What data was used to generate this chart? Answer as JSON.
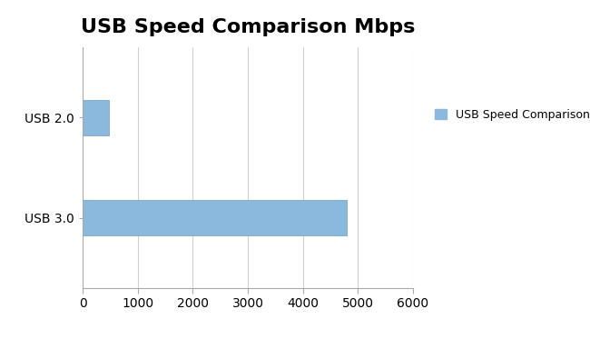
{
  "title": "USB Speed Comparison Mbps",
  "title_fontsize": 16,
  "title_fontweight": "bold",
  "categories": [
    "USB 3.0",
    "USB 2.0"
  ],
  "values": [
    4800,
    480
  ],
  "bar_color": "#8BB8DD",
  "bar_color_edge": "#6A9DC8",
  "xlim": [
    0,
    6000
  ],
  "xticks": [
    0,
    1000,
    2000,
    3000,
    4000,
    5000,
    6000
  ],
  "legend_label": "USB Speed Comparison Mbps",
  "legend_color": "#8BB8DD",
  "background_color": "#ffffff",
  "grid_color": "#d0d0d0",
  "tick_fontsize": 10,
  "bar_height": 0.35
}
